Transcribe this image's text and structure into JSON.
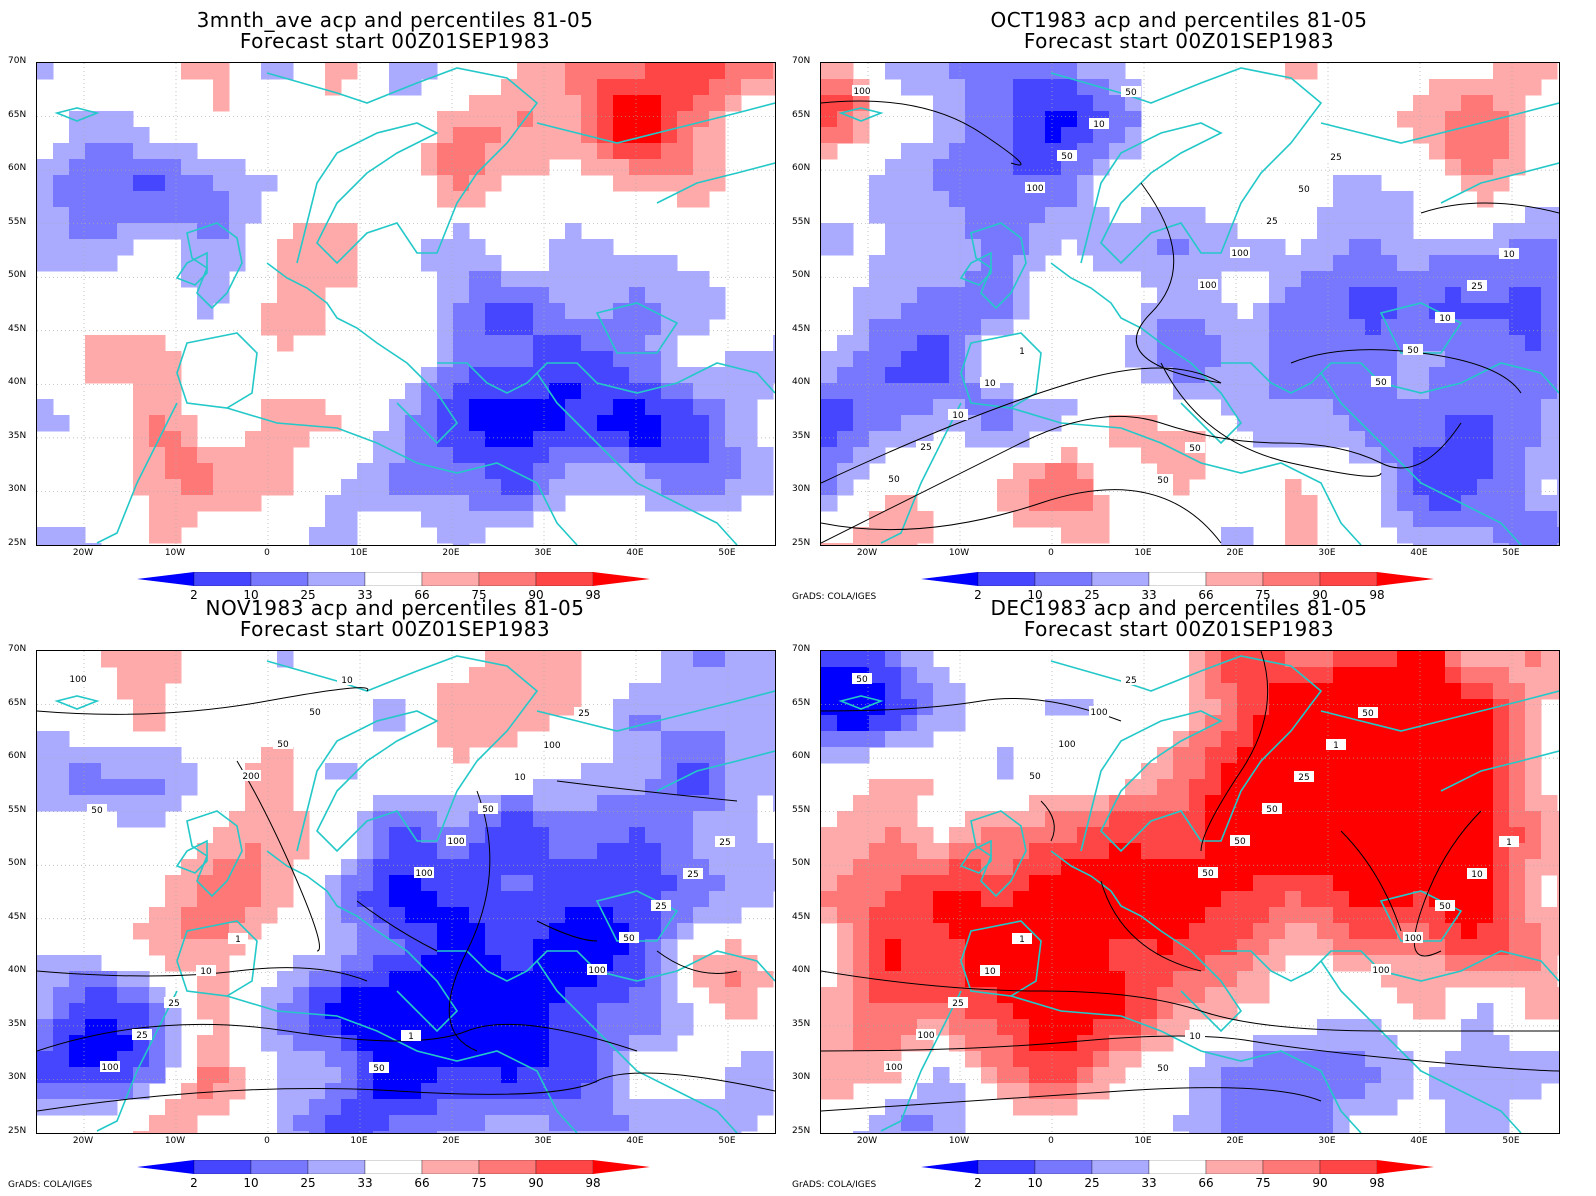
{
  "panels": [
    {
      "title_line1": "3mnth_ave acp and percentiles 81-05",
      "title_line2": "Forecast start 00Z01SEP1983",
      "credit": "",
      "has_contours": false
    },
    {
      "title_line1": "OCT1983 acp and percentiles 81-05",
      "title_line2": "Forecast start 00Z01SEP1983",
      "credit": "GrADS: COLA/IGES",
      "has_contours": true
    },
    {
      "title_line1": "NOV1983 acp and percentiles 81-05",
      "title_line2": "Forecast start 00Z01SEP1983",
      "credit": "GrADS: COLA/IGES",
      "has_contours": true
    },
    {
      "title_line1": "DEC1983 acp and percentiles 81-05",
      "title_line2": "Forecast start 00Z01SEP1983",
      "credit": "GrADS: COLA/IGES",
      "has_contours": true
    }
  ],
  "lat_labels": [
    "70N",
    "65N",
    "60N",
    "55N",
    "50N",
    "45N",
    "40N",
    "35N",
    "30N",
    "25N"
  ],
  "lon_labels": [
    "20W",
    "10W",
    "0",
    "10E",
    "20E",
    "30E",
    "40E",
    "50E"
  ],
  "colorbar": {
    "labels": [
      "2",
      "10",
      "25",
      "33",
      "66",
      "75",
      "90",
      "98"
    ],
    "colors": [
      "#0000ff",
      "#4646ff",
      "#7878ff",
      "#aaaaff",
      "#ffffff",
      "#ffaaaa",
      "#ff7878",
      "#ff4646",
      "#ff0000"
    ]
  },
  "colors": {
    "coastline": "#24c8c8",
    "contour": "#000000",
    "grid": "#aaaaaa"
  },
  "contour_labels": {
    "oct": [
      "100",
      "100",
      "100",
      "50",
      "50",
      "50",
      "100",
      "50",
      "25",
      "10",
      "25",
      "10",
      "10",
      "50",
      "50",
      "25",
      "10",
      "50",
      "25",
      "10",
      "1",
      "50"
    ],
    "nov": [
      "100",
      "200",
      "100",
      "100",
      "100",
      "50",
      "100",
      "50",
      "25",
      "50",
      "50",
      "25",
      "25",
      "10",
      "10",
      "25",
      "10",
      "50",
      "100",
      "25",
      "1",
      "1",
      "25",
      "50"
    ],
    "dec": [
      "50",
      "50",
      "50",
      "100",
      "100",
      "100",
      "50",
      "100",
      "100",
      "100",
      "50",
      "50",
      "25",
      "25",
      "25",
      "10",
      "10",
      "50",
      "1",
      "1",
      "1",
      "10",
      "50"
    ]
  }
}
